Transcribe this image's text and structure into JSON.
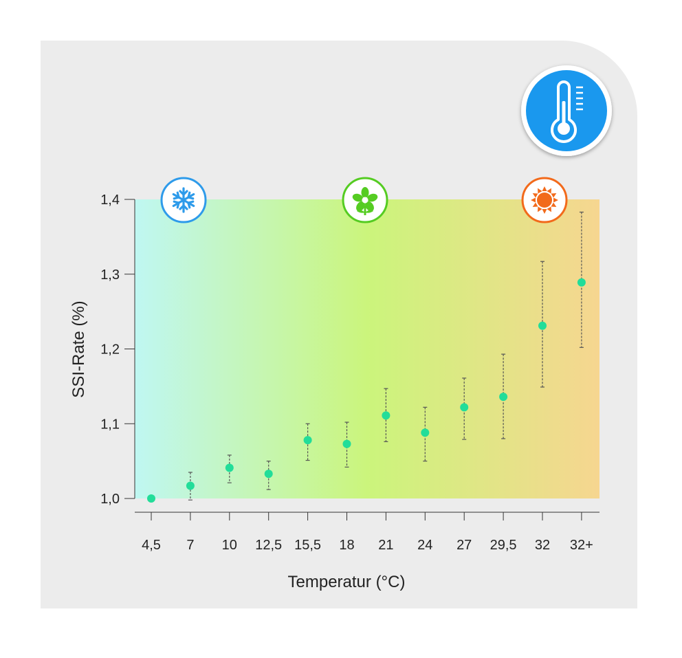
{
  "chart_data": {
    "type": "scatter",
    "title": "",
    "xlabel": "Temperatur (°C)",
    "ylabel": "SSI-Rate (%)",
    "categories": [
      "4,5",
      "7",
      "10",
      "12,5",
      "15,5",
      "18",
      "21",
      "24",
      "27",
      "29,5",
      "32",
      "32+"
    ],
    "values": [
      1.0,
      1.017,
      1.041,
      1.033,
      1.078,
      1.073,
      1.111,
      1.088,
      1.122,
      1.136,
      1.231,
      1.289
    ],
    "error_low": [
      null,
      0.998,
      1.021,
      1.012,
      1.051,
      1.042,
      1.076,
      1.05,
      1.079,
      1.08,
      1.149,
      1.202
    ],
    "error_high": [
      null,
      1.035,
      1.058,
      1.05,
      1.1,
      1.102,
      1.147,
      1.122,
      1.161,
      1.193,
      1.317,
      1.383
    ],
    "ylim": [
      1.0,
      1.4
    ],
    "yticks": [
      "1,0",
      "1,1",
      "1,2",
      "1,3",
      "1,4"
    ],
    "grid": false,
    "point_color": "#22dd99",
    "background_gradient": [
      "#bff6f0",
      "#c6f57a",
      "#f5d48f"
    ],
    "zone_icons": [
      {
        "name": "snowflake-icon",
        "color": "#2e9bea",
        "position_category": "4,5"
      },
      {
        "name": "flower-icon",
        "color": "#55cc22",
        "position_category": "18"
      },
      {
        "name": "sun-icon",
        "color": "#f26a1b",
        "position_category": "32"
      }
    ],
    "badge_icon": {
      "name": "thermometer-icon",
      "color": "#1a98ee"
    }
  }
}
